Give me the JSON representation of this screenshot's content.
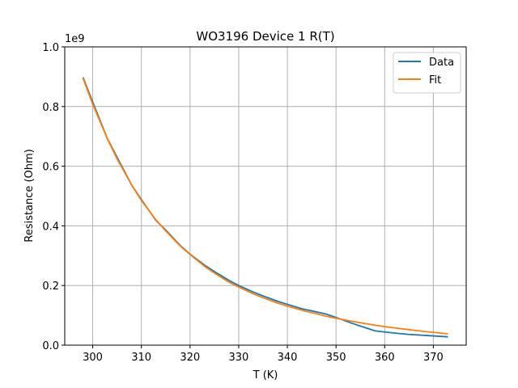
{
  "chart_data": {
    "type": "line",
    "title": "WO3196 Device 1 R(T)",
    "xlabel": "T (K)",
    "ylabel": "Resistance (Ohm)",
    "y_offset_label": "1e9",
    "xlim": [
      294.25,
      376.75
    ],
    "ylim": [
      0,
      1.0
    ],
    "x_ticks": [
      300,
      310,
      320,
      330,
      340,
      350,
      360,
      370
    ],
    "y_ticks": [
      0.0,
      0.2,
      0.4,
      0.6,
      0.8,
      1.0
    ],
    "x_tick_labels": [
      "300",
      "310",
      "320",
      "330",
      "340",
      "350",
      "360",
      "370"
    ],
    "y_tick_labels": [
      "0.0",
      "0.2",
      "0.4",
      "0.6",
      "0.8",
      "1.0"
    ],
    "grid": true,
    "legend_position": "top-right",
    "series": [
      {
        "name": "Data",
        "color": "#1f77b4",
        "x": [
          298,
          300,
          303,
          305,
          308,
          310,
          313,
          315,
          318,
          320,
          323,
          325,
          328,
          330,
          333,
          335,
          338,
          340,
          343,
          345,
          348,
          350,
          353,
          355,
          358,
          360,
          363,
          365,
          368,
          370,
          373
        ],
        "y": [
          0.898,
          0.815,
          0.693,
          0.63,
          0.537,
          0.488,
          0.418,
          0.386,
          0.334,
          0.305,
          0.268,
          0.247,
          0.217,
          0.2,
          0.178,
          0.165,
          0.147,
          0.137,
          0.122,
          0.115,
          0.104,
          0.093,
          0.075,
          0.064,
          0.048,
          0.044,
          0.039,
          0.036,
          0.033,
          0.031,
          0.028
        ]
      },
      {
        "name": "Fit",
        "color": "#ff7f0e",
        "x": [
          298,
          300,
          303,
          305,
          308,
          310,
          313,
          315,
          318,
          320,
          323,
          325,
          328,
          330,
          333,
          335,
          338,
          340,
          343,
          345,
          348,
          350,
          353,
          355,
          358,
          360,
          363,
          365,
          368,
          370,
          373
        ],
        "y": [
          0.895,
          0.808,
          0.692,
          0.625,
          0.537,
          0.485,
          0.42,
          0.383,
          0.332,
          0.304,
          0.264,
          0.242,
          0.211,
          0.195,
          0.172,
          0.159,
          0.141,
          0.131,
          0.117,
          0.109,
          0.097,
          0.09,
          0.081,
          0.075,
          0.067,
          0.062,
          0.056,
          0.052,
          0.046,
          0.043,
          0.038
        ]
      }
    ]
  }
}
